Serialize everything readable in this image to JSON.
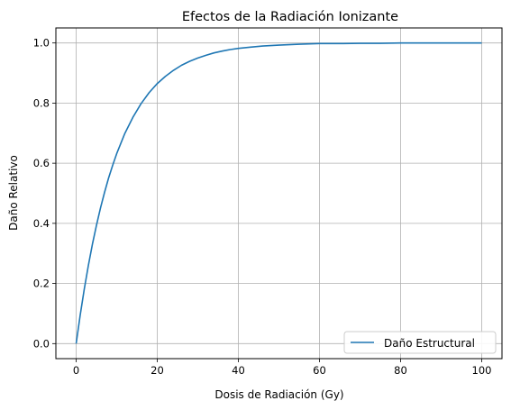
{
  "chart_data": {
    "type": "line",
    "title": "Efectos de la Radiación Ionizante",
    "xlabel": "Dosis de Radiación (Gy)",
    "ylabel": "Daño Relativo",
    "xlim": [
      -5,
      105
    ],
    "ylim": [
      -0.05,
      1.05
    ],
    "xticks": [
      0,
      20,
      40,
      60,
      80,
      100
    ],
    "xtick_labels": [
      "0",
      "20",
      "40",
      "60",
      "80",
      "100"
    ],
    "yticks": [
      0.0,
      0.2,
      0.4,
      0.6,
      0.8,
      1.0
    ],
    "ytick_labels": [
      "0.0",
      "0.2",
      "0.4",
      "0.6",
      "0.8",
      "1.0"
    ],
    "grid": true,
    "legend_position": "lower-right",
    "series": [
      {
        "name": "Daño Estructural",
        "color": "#1f77b4",
        "x": [
          0,
          1,
          2,
          3,
          4,
          5,
          6,
          7,
          8,
          9,
          10,
          12,
          14,
          16,
          18,
          20,
          22,
          24,
          26,
          28,
          30,
          32,
          34,
          36,
          38,
          40,
          43,
          46,
          50,
          55,
          60,
          65,
          70,
          75,
          80,
          85,
          90,
          95,
          100
        ],
        "y": [
          0.0,
          0.095,
          0.181,
          0.259,
          0.33,
          0.393,
          0.451,
          0.503,
          0.551,
          0.593,
          0.632,
          0.699,
          0.753,
          0.798,
          0.835,
          0.865,
          0.889,
          0.909,
          0.926,
          0.939,
          0.95,
          0.959,
          0.967,
          0.973,
          0.978,
          0.982,
          0.986,
          0.99,
          0.993,
          0.996,
          0.998,
          0.998,
          0.999,
          0.999,
          1.0,
          1.0,
          1.0,
          1.0,
          1.0
        ]
      }
    ]
  }
}
